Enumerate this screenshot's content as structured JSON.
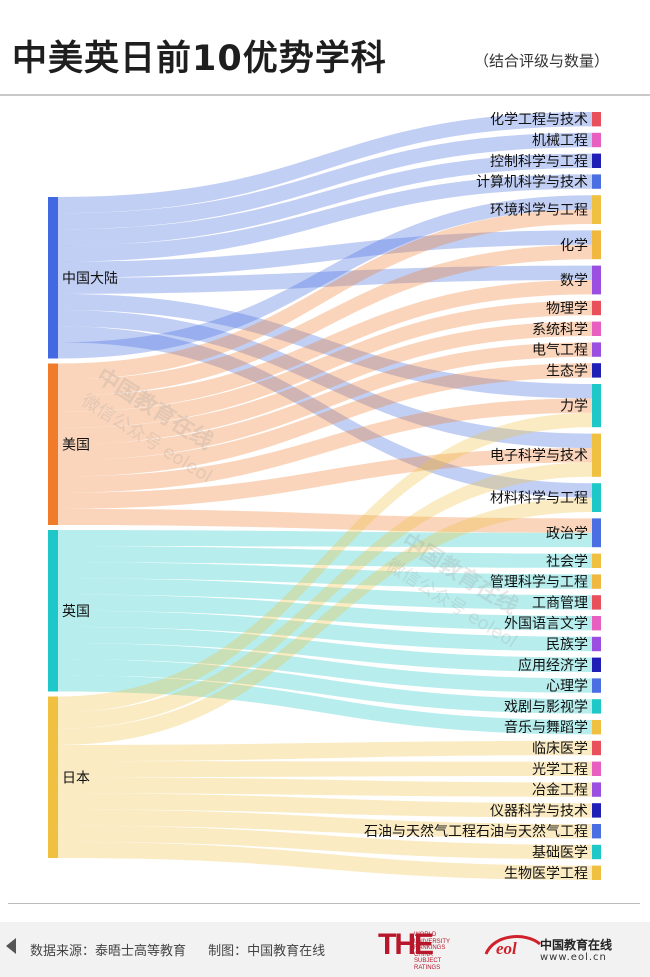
{
  "header": {
    "title": "中美英日前10优势学科",
    "subtitle": "（结合评级与数量）"
  },
  "footer": {
    "source": "数据来源：泰晤士高等教育",
    "made_by": "制图：中国教育在线",
    "the_logo_text": "THE",
    "the_logo_small": "WORLD UNIVERSITY RANKINGS CHINA SUBJECT RATINGS",
    "eol_logo_text": "eol",
    "eol_name": "中国教育在线",
    "eol_url": "www.eol.cn"
  },
  "watermark": {
    "line1": "中国教育在线",
    "line2": "微信公众号 eoleol"
  },
  "colors": {
    "中国大陆": "#4169e1",
    "美国": "#f07c2a",
    "英国": "#1ec8c8",
    "日本": "#f0c040"
  },
  "chart_data": {
    "type": "sankey",
    "title": "中美英日前10优势学科",
    "sources": [
      "中国大陆",
      "美国",
      "英国",
      "日本"
    ],
    "targets": [
      {
        "name": "化学工程与技术",
        "color": "#e8505b"
      },
      {
        "name": "机械工程",
        "color": "#e75fbf"
      },
      {
        "name": "控制科学与工程",
        "color": "#1f1fb8"
      },
      {
        "name": "计算机科学与技术",
        "color": "#4a6fe3"
      },
      {
        "name": "环境科学与工程",
        "color": "#f0c040"
      },
      {
        "name": "化学",
        "color": "#f0b840"
      },
      {
        "name": "数学",
        "color": "#9b4fe0"
      },
      {
        "name": "物理学",
        "color": "#e8505b"
      },
      {
        "name": "系统科学",
        "color": "#e75fbf"
      },
      {
        "name": "电气工程",
        "color": "#9b4fe0"
      },
      {
        "name": "生态学",
        "color": "#1f1fb8"
      },
      {
        "name": "力学",
        "color": "#1ec8c8"
      },
      {
        "name": "电子科学与技术",
        "color": "#f0c040"
      },
      {
        "name": "材料科学与工程",
        "color": "#1ec8c8"
      },
      {
        "name": "政治学",
        "color": "#4a6fe3"
      },
      {
        "name": "社会学",
        "color": "#f0c040"
      },
      {
        "name": "管理科学与工程",
        "color": "#f0b840"
      },
      {
        "name": "工商管理",
        "color": "#e8505b"
      },
      {
        "name": "外国语言文学",
        "color": "#e75fbf"
      },
      {
        "name": "民族学",
        "color": "#9b4fe0"
      },
      {
        "name": "应用经济学",
        "color": "#1f1fb8"
      },
      {
        "name": "心理学",
        "color": "#4a6fe3"
      },
      {
        "name": "戏剧与影视学",
        "color": "#1ec8c8"
      },
      {
        "name": "音乐与舞蹈学",
        "color": "#f0c040"
      },
      {
        "name": "临床医学",
        "color": "#e8505b"
      },
      {
        "name": "光学工程",
        "color": "#e75fbf"
      },
      {
        "name": "冶金工程",
        "color": "#9b4fe0"
      },
      {
        "name": "仪器科学与技术",
        "color": "#1f1fb8"
      },
      {
        "name": "石油与天然气工程石油与天然气工程",
        "color": "#4a6fe3"
      },
      {
        "name": "基础医学",
        "color": "#1ec8c8"
      },
      {
        "name": "生物医学工程",
        "color": "#f0c040"
      }
    ],
    "links": [
      {
        "source": "中国大陆",
        "target": "化学工程与技术",
        "value": 1
      },
      {
        "source": "中国大陆",
        "target": "机械工程",
        "value": 1
      },
      {
        "source": "中国大陆",
        "target": "控制科学与工程",
        "value": 1
      },
      {
        "source": "中国大陆",
        "target": "计算机科学与技术",
        "value": 1
      },
      {
        "source": "中国大陆",
        "target": "化学",
        "value": 1
      },
      {
        "source": "中国大陆",
        "target": "数学",
        "value": 1
      },
      {
        "source": "中国大陆",
        "target": "力学",
        "value": 1
      },
      {
        "source": "中国大陆",
        "target": "电子科学与技术",
        "value": 1
      },
      {
        "source": "中国大陆",
        "target": "材料科学与工程",
        "value": 1
      },
      {
        "source": "中国大陆",
        "target": "环境科学与工程",
        "value": 1
      },
      {
        "source": "美国",
        "target": "环境科学与工程",
        "value": 1
      },
      {
        "source": "美国",
        "target": "化学",
        "value": 1
      },
      {
        "source": "美国",
        "target": "数学",
        "value": 1
      },
      {
        "source": "美国",
        "target": "物理学",
        "value": 1
      },
      {
        "source": "美国",
        "target": "系统科学",
        "value": 1
      },
      {
        "source": "美国",
        "target": "电气工程",
        "value": 1
      },
      {
        "source": "美国",
        "target": "生态学",
        "value": 1
      },
      {
        "source": "美国",
        "target": "力学",
        "value": 1
      },
      {
        "source": "美国",
        "target": "电子科学与技术",
        "value": 1
      },
      {
        "source": "美国",
        "target": "政治学",
        "value": 1
      },
      {
        "source": "英国",
        "target": "政治学",
        "value": 1
      },
      {
        "source": "英国",
        "target": "社会学",
        "value": 1
      },
      {
        "source": "英国",
        "target": "管理科学与工程",
        "value": 1
      },
      {
        "source": "英国",
        "target": "工商管理",
        "value": 1
      },
      {
        "source": "英国",
        "target": "外国语言文学",
        "value": 1
      },
      {
        "source": "英国",
        "target": "民族学",
        "value": 1
      },
      {
        "source": "英国",
        "target": "应用经济学",
        "value": 1
      },
      {
        "source": "英国",
        "target": "心理学",
        "value": 1
      },
      {
        "source": "英国",
        "target": "戏剧与影视学",
        "value": 1
      },
      {
        "source": "英国",
        "target": "音乐与舞蹈学",
        "value": 1
      },
      {
        "source": "日本",
        "target": "力学",
        "value": 1
      },
      {
        "source": "日本",
        "target": "电子科学与技术",
        "value": 1
      },
      {
        "source": "日本",
        "target": "材料科学与工程",
        "value": 1
      },
      {
        "source": "日本",
        "target": "临床医学",
        "value": 1
      },
      {
        "source": "日本",
        "target": "光学工程",
        "value": 1
      },
      {
        "source": "日本",
        "target": "冶金工程",
        "value": 1
      },
      {
        "source": "日本",
        "target": "仪器科学与技术",
        "value": 1
      },
      {
        "source": "日本",
        "target": "石油与天然气工程石油与天然气工程",
        "value": 1
      },
      {
        "source": "日本",
        "target": "基础医学",
        "value": 1
      },
      {
        "source": "日本",
        "target": "生物医学工程",
        "value": 1
      }
    ]
  }
}
